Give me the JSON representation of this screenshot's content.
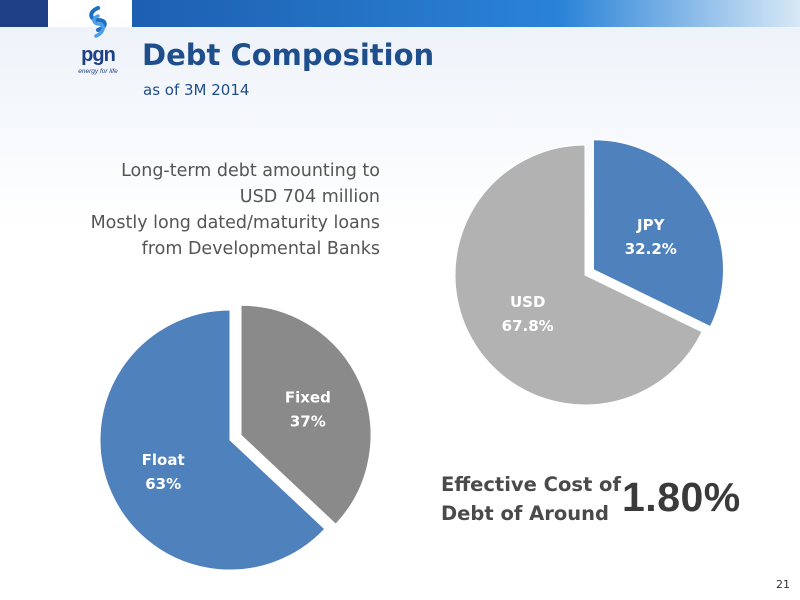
{
  "header": {
    "logo_text": "pgn",
    "logo_tagline": "energy for life",
    "title": "Debt Composition",
    "subtitle": "as of 3M 2014"
  },
  "description": {
    "lines": [
      "Long-term debt amounting to",
      "USD 704 million",
      "Mostly long dated/maturity loans",
      "from Developmental Banks"
    ]
  },
  "cost": {
    "label_line1": "Effective Cost of",
    "label_line2": "Debt of Around",
    "value": "1.80%"
  },
  "page_number": "21",
  "chart_data": [
    {
      "type": "pie",
      "labels": [
        "JPY",
        "USD"
      ],
      "values": [
        32.2,
        67.8
      ],
      "value_labels": [
        "32.2%",
        "67.8%"
      ],
      "colors": [
        "#4f81bd",
        "#b2b2b2"
      ],
      "exploded": "JPY"
    },
    {
      "type": "pie",
      "labels": [
        "Fixed",
        "Float"
      ],
      "values": [
        37,
        63
      ],
      "value_labels": [
        "37%",
        "63%"
      ],
      "colors": [
        "#8a8a8a",
        "#4f81bd"
      ],
      "exploded": "Fixed"
    }
  ]
}
